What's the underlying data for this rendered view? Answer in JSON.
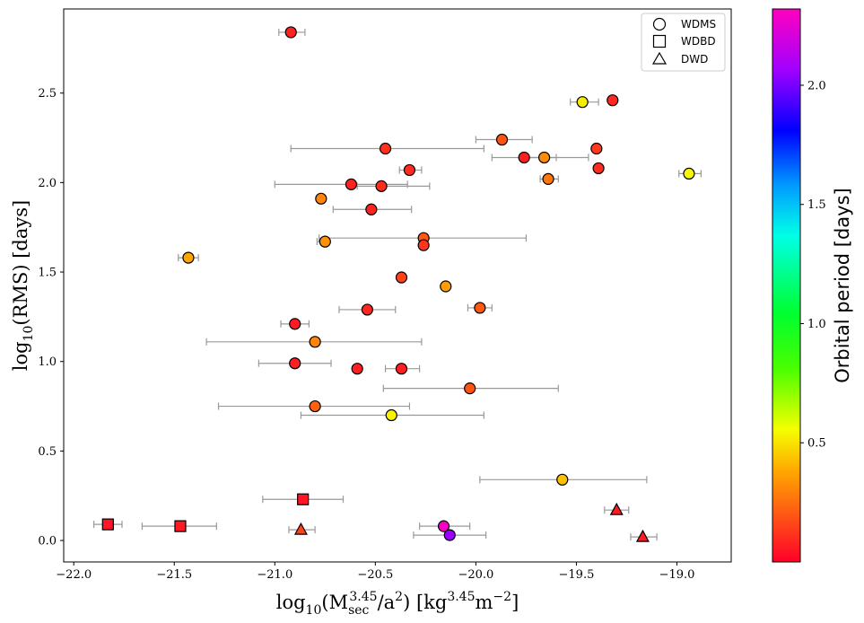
{
  "chart_data": {
    "type": "scatter",
    "xlabel": "log10(M_sec^3.45 / a^2) [kg^3.45 m^-2]",
    "xlabel_parts": {
      "base": "log",
      "sub1": "10",
      "open": "(M",
      "sub2": "sec",
      "sup1": "3.45",
      "mid": "/a",
      "sup2": "2",
      "close": ") [kg",
      "sup3": "3.45",
      "unit_m": "m",
      "sup4": "−2",
      "end": "]"
    },
    "ylabel": "log10(RMS) [days]",
    "ylabel_parts": {
      "base": "log",
      "sub": "10",
      "rest": "(RMS) [days]"
    },
    "xlim": [
      -22.05,
      -18.73
    ],
    "ylim": [
      -0.12,
      2.97
    ],
    "xticks": [
      -22.0,
      -21.5,
      -21.0,
      -20.5,
      -20.0,
      -19.5,
      -19.0
    ],
    "xtick_labels": [
      "−22.0",
      "−21.5",
      "−21.0",
      "−20.5",
      "−20.0",
      "−19.5",
      "−19.0"
    ],
    "yticks": [
      0.0,
      0.5,
      1.0,
      1.5,
      2.0,
      2.5
    ],
    "ytick_labels": [
      "0.0",
      "0.5",
      "1.0",
      "1.5",
      "2.0",
      "2.5"
    ],
    "grid": false,
    "legend_position": "top-right",
    "legend": [
      {
        "marker": "circle",
        "label": "WDMS"
      },
      {
        "marker": "square",
        "label": "WDBD"
      },
      {
        "marker": "triangle",
        "label": "DWD"
      }
    ],
    "colorbar": {
      "label": "Orbital period [days]",
      "colormap": "gist_rainbow",
      "range": [
        0.0,
        2.32
      ],
      "ticks": [
        0.5,
        1.0,
        1.5,
        2.0
      ],
      "tick_labels": [
        "0.5",
        "1.0",
        "1.5",
        "2.0"
      ]
    },
    "series": [
      {
        "name": "WDMS",
        "marker": "circle",
        "points": [
          {
            "x": -20.92,
            "y": 2.84,
            "xerr": [
              0.06,
              0.07
            ],
            "period": 0.08
          },
          {
            "x": -19.47,
            "y": 2.45,
            "xerr": [
              0.06,
              0.08
            ],
            "period": 0.52
          },
          {
            "x": -19.32,
            "y": 2.46,
            "xerr": null,
            "period": 0.09
          },
          {
            "x": -19.87,
            "y": 2.24,
            "xerr": [
              0.13,
              0.15
            ],
            "period": 0.19
          },
          {
            "x": -20.45,
            "y": 2.19,
            "xerr": [
              0.47,
              0.49
            ],
            "period": 0.11
          },
          {
            "x": -19.4,
            "y": 2.19,
            "xerr": null,
            "period": 0.13
          },
          {
            "x": -19.76,
            "y": 2.14,
            "xerr": [
              0.16,
              0.16
            ],
            "period": 0.07
          },
          {
            "x": -19.66,
            "y": 2.14,
            "xerr": [
              0.08,
              0.22
            ],
            "period": 0.32
          },
          {
            "x": -20.33,
            "y": 2.07,
            "xerr": [
              0.05,
              0.06
            ],
            "period": 0.1
          },
          {
            "x": -19.39,
            "y": 2.08,
            "xerr": null,
            "period": 0.1
          },
          {
            "x": -18.94,
            "y": 2.05,
            "xerr": [
              0.05,
              0.06
            ],
            "period": 0.54
          },
          {
            "x": -20.62,
            "y": 1.99,
            "xerr": [
              0.38,
              0.28
            ],
            "period": 0.08
          },
          {
            "x": -20.47,
            "y": 1.98,
            "xerr": [
              0.12,
              0.24
            ],
            "period": 0.1
          },
          {
            "x": -19.64,
            "y": 2.02,
            "xerr": [
              0.04,
              0.05
            ],
            "period": 0.27
          },
          {
            "x": -20.77,
            "y": 1.91,
            "xerr": null,
            "period": 0.3
          },
          {
            "x": -20.52,
            "y": 1.85,
            "xerr": [
              0.19,
              0.2
            ],
            "period": 0.08
          },
          {
            "x": -20.75,
            "y": 1.67,
            "xerr": [
              0.04,
              0.02
            ],
            "period": 0.33
          },
          {
            "x": -20.26,
            "y": 1.69,
            "xerr": [
              0.52,
              0.51
            ],
            "period": 0.2
          },
          {
            "x": -20.26,
            "y": 1.65,
            "xerr": null,
            "period": 0.12
          },
          {
            "x": -21.43,
            "y": 1.58,
            "xerr": [
              0.05,
              0.05
            ],
            "period": 0.38
          },
          {
            "x": -20.37,
            "y": 1.47,
            "xerr": null,
            "period": 0.15
          },
          {
            "x": -20.15,
            "y": 1.42,
            "xerr": null,
            "period": 0.36
          },
          {
            "x": -20.54,
            "y": 1.29,
            "xerr": [
              0.14,
              0.14
            ],
            "period": 0.09
          },
          {
            "x": -19.98,
            "y": 1.3,
            "xerr": [
              0.06,
              0.06
            ],
            "period": 0.2
          },
          {
            "x": -20.9,
            "y": 1.21,
            "xerr": [
              0.07,
              0.07
            ],
            "period": 0.06
          },
          {
            "x": -20.8,
            "y": 1.11,
            "xerr": [
              0.54,
              0.53
            ],
            "period": 0.3
          },
          {
            "x": -20.9,
            "y": 0.99,
            "xerr": [
              0.18,
              0.18
            ],
            "period": 0.07
          },
          {
            "x": -20.59,
            "y": 0.96,
            "xerr": null,
            "period": 0.07
          },
          {
            "x": -20.37,
            "y": 0.96,
            "xerr": [
              0.08,
              0.09
            ],
            "period": 0.07
          },
          {
            "x": -20.03,
            "y": 0.85,
            "xerr": [
              0.43,
              0.44
            ],
            "period": 0.19
          },
          {
            "x": -20.8,
            "y": 0.75,
            "xerr": [
              0.48,
              0.47
            ],
            "period": 0.22
          },
          {
            "x": -20.42,
            "y": 0.7,
            "xerr": [
              0.45,
              0.46
            ],
            "period": 0.53
          },
          {
            "x": -19.57,
            "y": 0.34,
            "xerr": [
              0.41,
              0.42
            ],
            "period": 0.43
          },
          {
            "x": -20.16,
            "y": 0.08,
            "xerr": [
              0.12,
              0.13
            ],
            "period": 2.3
          },
          {
            "x": -20.13,
            "y": 0.03,
            "xerr": [
              0.18,
              0.18
            ],
            "period": 2.05
          }
        ]
      },
      {
        "name": "WDBD",
        "marker": "square",
        "points": [
          {
            "x": -21.83,
            "y": 0.09,
            "xerr": [
              0.07,
              0.07
            ],
            "period": 0.05
          },
          {
            "x": -21.47,
            "y": 0.08,
            "xerr": [
              0.19,
              0.18
            ],
            "period": 0.06
          },
          {
            "x": -20.86,
            "y": 0.23,
            "xerr": [
              0.2,
              0.2
            ],
            "period": 0.05
          }
        ]
      },
      {
        "name": "DWD",
        "marker": "triangle",
        "points": [
          {
            "x": -20.87,
            "y": 0.06,
            "xerr": [
              0.06,
              0.07
            ],
            "period": 0.15
          },
          {
            "x": -19.3,
            "y": 0.17,
            "xerr": [
              0.06,
              0.06
            ],
            "period": 0.06
          },
          {
            "x": -19.17,
            "y": 0.02,
            "xerr": [
              0.06,
              0.07
            ],
            "period": 0.06
          }
        ]
      }
    ]
  }
}
